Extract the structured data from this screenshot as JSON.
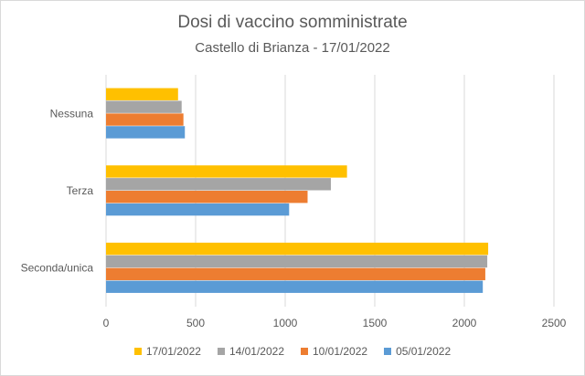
{
  "chart_data": {
    "type": "bar",
    "orientation": "horizontal",
    "title": "Dosi di vaccino somministrate",
    "subtitle": "Castello di Brianza - 17/01/2022",
    "categories": [
      "Seconda/unica",
      "Terza",
      "Nessuna"
    ],
    "series": [
      {
        "name": "05/01/2022",
        "color": "#5b9bd5",
        "values": [
          2103,
          1022,
          440
        ]
      },
      {
        "name": "10/01/2022",
        "color": "#ed7d31",
        "values": [
          2117,
          1125,
          432
        ]
      },
      {
        "name": "14/01/2022",
        "color": "#a5a5a5",
        "values": [
          2128,
          1255,
          422
        ]
      },
      {
        "name": "17/01/2022",
        "color": "#ffc000",
        "values": [
          2133,
          1345,
          402
        ]
      }
    ],
    "xlim": [
      0,
      2500
    ],
    "x_ticks": [
      0,
      500,
      1000,
      1500,
      2000,
      2500
    ],
    "grid": true,
    "legend_position": "bottom"
  }
}
